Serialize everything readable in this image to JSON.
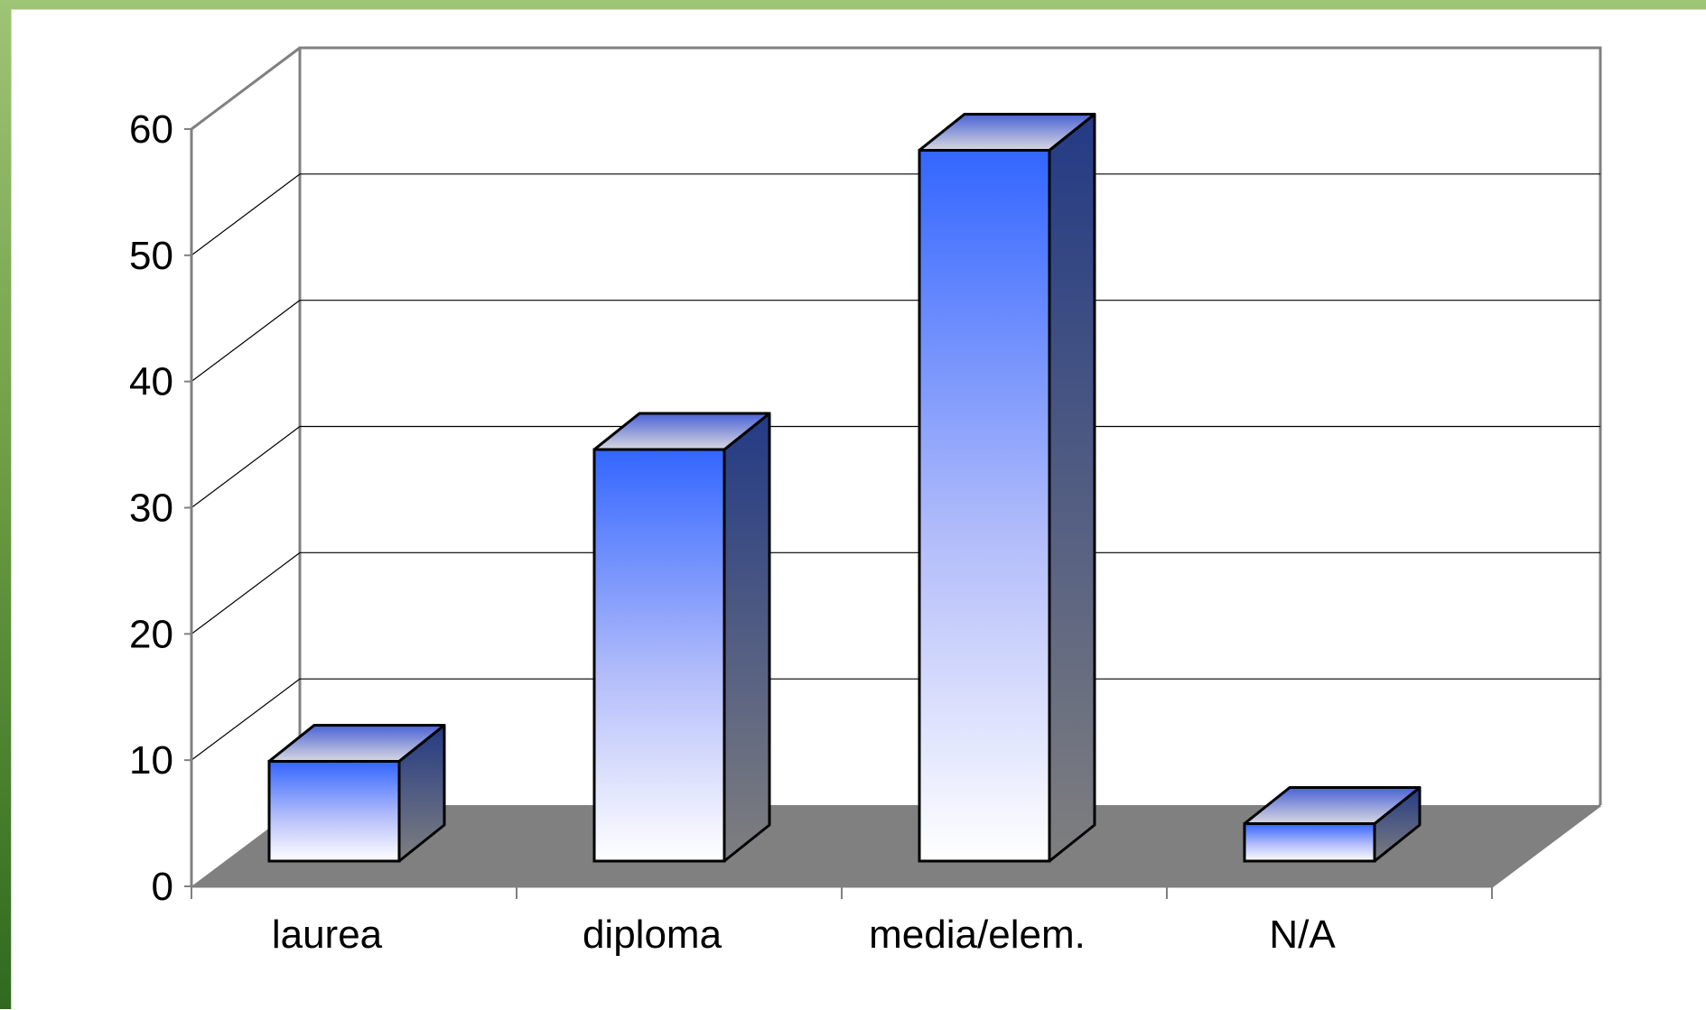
{
  "chart_data": {
    "type": "bar",
    "title": "",
    "xlabel": "",
    "ylabel": "",
    "categories": [
      "laurea",
      "diploma",
      "media/elem.",
      "N/A"
    ],
    "values": [
      8,
      33,
      57,
      3
    ],
    "ylim": [
      0,
      60
    ],
    "yticks": [
      "0",
      "10",
      "20",
      "30",
      "40",
      "50",
      "60"
    ],
    "grid": true,
    "legend": "none",
    "style": "3d-column",
    "colors": {
      "bar_top": "#3366ff",
      "bar_bottom": "#ffffff",
      "bar_side": "#233a85",
      "floor": "#808080",
      "frame_green": "#4f8a2f"
    }
  }
}
